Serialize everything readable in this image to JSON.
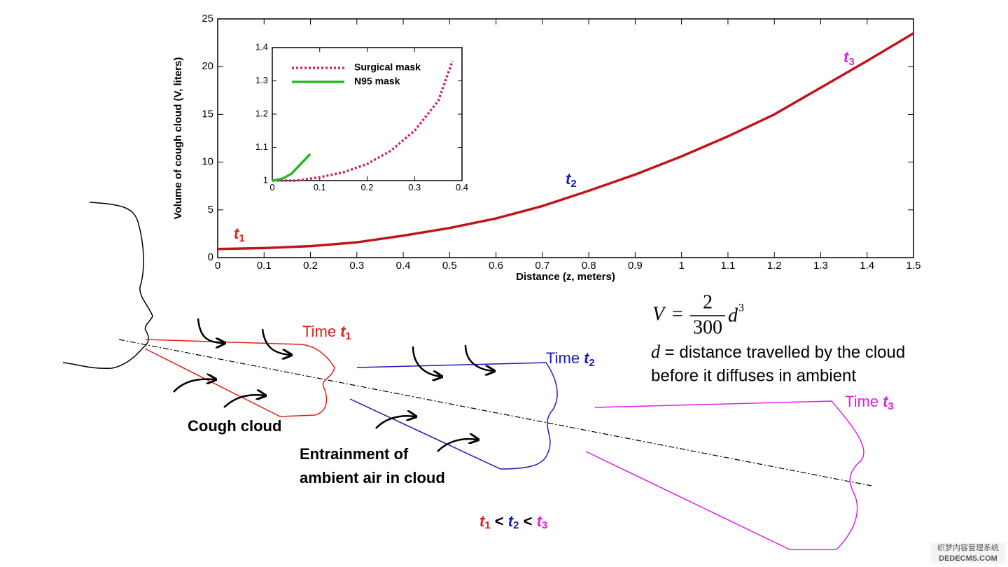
{
  "chart_data": [
    {
      "type": "line",
      "x_label": "Distance (z, meters)",
      "y_label": "Volume of cough cloud (V, liters)",
      "x": [
        0,
        0.1,
        0.2,
        0.3,
        0.4,
        0.5,
        0.6,
        0.7,
        0.8,
        0.9,
        1.0,
        1.1,
        1.2,
        1.3,
        1.4,
        1.5
      ],
      "values": [
        0.9,
        1.0,
        1.2,
        1.6,
        2.3,
        3.1,
        4.1,
        5.4,
        7.0,
        8.7,
        10.6,
        12.7,
        15.0,
        17.8,
        20.6,
        23.5
      ],
      "color": "#c0141c",
      "xlim": [
        0,
        1.5
      ],
      "xticks": [
        0,
        0.1,
        0.2,
        0.3,
        0.4,
        0.5,
        0.6,
        0.7,
        0.8,
        0.9,
        1,
        1.1,
        1.2,
        1.3,
        1.4,
        1.5
      ],
      "ylim": [
        0,
        25
      ],
      "yticks": [
        0,
        5,
        10,
        15,
        20,
        25
      ],
      "annotations": [
        {
          "t": "t",
          "sub": "1",
          "color": "#e0201b"
        },
        {
          "t": "t",
          "sub": "2",
          "color": "#1a1ab8"
        },
        {
          "t": "t",
          "sub": "3",
          "color": "#e020e0"
        }
      ]
    },
    {
      "type": "line",
      "series": [
        {
          "name": "Surgical mask",
          "color": "#d0206e",
          "line_style": "dotted",
          "x": [
            0,
            0.05,
            0.1,
            0.15,
            0.2,
            0.25,
            0.3,
            0.35,
            0.38
          ],
          "values": [
            1.0,
            1.0,
            1.01,
            1.025,
            1.05,
            1.09,
            1.15,
            1.24,
            1.36
          ]
        },
        {
          "name": "N95 mask",
          "color": "#22bb22",
          "line_style": "solid",
          "x": [
            0,
            0.02,
            0.04,
            0.06,
            0.08
          ],
          "values": [
            1.0,
            1.005,
            1.02,
            1.05,
            1.08
          ]
        }
      ],
      "xlim": [
        0,
        0.4
      ],
      "xticks": [
        0,
        0.1,
        0.2,
        0.3,
        0.4
      ],
      "ylim": [
        1,
        1.4
      ],
      "yticks": [
        1,
        1.1,
        1.2,
        1.3,
        1.4
      ]
    }
  ],
  "diagram": {
    "time_labels": [
      {
        "prefix": "Time",
        "t": "t",
        "sub": "1",
        "color": "#e0201b"
      },
      {
        "prefix": "Time",
        "t": "t",
        "sub": "2",
        "color": "#1a1ab8"
      },
      {
        "prefix": "Time",
        "t": "t",
        "sub": "3",
        "color": "#e020e0"
      }
    ],
    "cough_cloud": "Cough cloud",
    "entrainment": [
      "Entrainment of",
      "ambient air in cloud"
    ],
    "formula": {
      "lhs": "V",
      "eq": "=",
      "num": "2",
      "den": "300",
      "var": "d",
      "exp": "3"
    },
    "note": {
      "var": "d",
      "line1": "= distance travelled by the cloud",
      "line2": "before it diffuses in ambient"
    },
    "order": {
      "t": "t",
      "subs": [
        "1",
        "2",
        "3"
      ],
      "lt": "<"
    },
    "watermark": [
      "织梦内容管理系统",
      "DEDECMS.COM"
    ]
  }
}
